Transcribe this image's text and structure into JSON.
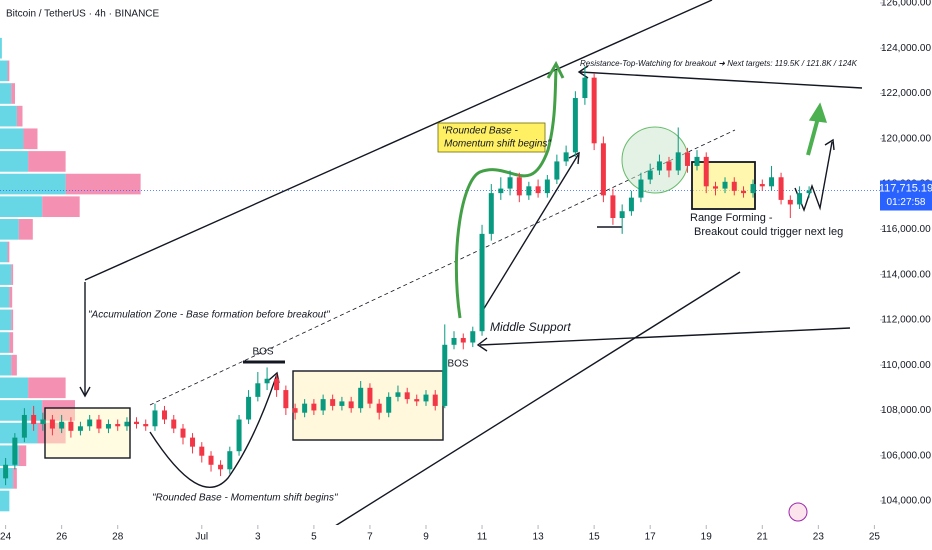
{
  "chart_data": {
    "type": "candlestick",
    "title": "Bitcoin / TetherUS · 4h · BINANCE",
    "up_color": "#089981",
    "down_color": "#f23645",
    "x": [
      0,
      0.33,
      0.67,
      1,
      1.33,
      1.67,
      2,
      2.33,
      2.67,
      3,
      3.33,
      3.67,
      4,
      4.33,
      4.67,
      5,
      5.33,
      5.67,
      6,
      6.33,
      6.67,
      7,
      7.33,
      7.67,
      8,
      8.33,
      8.67,
      9,
      9.33,
      9.67,
      10,
      10.33,
      10.67,
      11,
      11.33,
      11.67,
      12,
      12.33,
      12.67,
      13,
      13.33,
      13.67,
      14,
      14.33,
      14.67,
      15,
      15.33,
      15.67,
      16,
      16.33,
      16.67,
      17,
      17.33,
      17.67,
      18,
      18.33,
      18.67,
      19,
      19.33,
      19.67,
      20,
      20.33,
      20.67,
      21,
      21.33,
      21.67,
      22,
      22.33,
      22.67,
      23,
      23.33,
      23.67,
      24,
      24.33,
      24.67,
      25,
      25.33,
      25.67,
      26,
      26.33,
      26.67,
      27,
      27.33,
      27.67,
      28,
      28.33,
      28.67
    ],
    "open": [
      105000,
      105600,
      106800,
      107800,
      107400,
      107600,
      107200,
      107500,
      107100,
      107300,
      107600,
      107200,
      107400,
      107300,
      107500,
      107400,
      107300,
      108000,
      107600,
      107200,
      106800,
      106400,
      106000,
      105600,
      105400,
      106200,
      107600,
      108600,
      109200,
      109400,
      108900,
      108100,
      107900,
      108300,
      108000,
      108500,
      108200,
      108400,
      108100,
      109000,
      108300,
      107900,
      108600,
      108800,
      108500,
      108400,
      108700,
      108200,
      110900,
      111200,
      111000,
      111500,
      115800,
      117600,
      117800,
      118300,
      117500,
      117900,
      117600,
      118200,
      119000,
      119400,
      121800,
      122700,
      119800,
      117500,
      116500,
      116800,
      117400,
      118200,
      118600,
      119000,
      118600,
      119400,
      118800,
      119200,
      117900,
      117800,
      118100,
      117700,
      117600,
      118000,
      117900,
      118300,
      117300,
      117100,
      117600
    ],
    "high": [
      105900,
      107000,
      108100,
      108200,
      107900,
      107800,
      107800,
      107700,
      107500,
      107800,
      107800,
      107600,
      107600,
      107700,
      107700,
      107600,
      108300,
      108200,
      107800,
      107400,
      107000,
      106600,
      106200,
      105800,
      106400,
      107800,
      108900,
      109700,
      109900,
      109600,
      109100,
      108300,
      108500,
      108500,
      108700,
      108700,
      108600,
      108600,
      109300,
      109200,
      108500,
      108800,
      109100,
      109000,
      108700,
      108900,
      108900,
      111800,
      111500,
      111400,
      111700,
      116200,
      118000,
      118300,
      118600,
      118500,
      118100,
      118200,
      118400,
      119300,
      119700,
      122100,
      123200,
      122900,
      120100,
      117800,
      117100,
      117700,
      118500,
      118900,
      119300,
      119200,
      120500,
      119600,
      119500,
      119400,
      118100,
      118300,
      118300,
      117900,
      118200,
      118200,
      118800,
      118500,
      117500,
      117900,
      117900
    ],
    "low": [
      104700,
      105400,
      106600,
      107100,
      107100,
      106900,
      107000,
      106800,
      106900,
      107100,
      107000,
      107000,
      107100,
      107100,
      107200,
      107100,
      107100,
      107400,
      107000,
      106500,
      106100,
      105700,
      105300,
      105100,
      105200,
      106000,
      107400,
      108400,
      108900,
      108600,
      107800,
      107600,
      107700,
      107800,
      107800,
      108000,
      108000,
      107900,
      107900,
      108100,
      107600,
      107700,
      108400,
      108300,
      108200,
      108200,
      108000,
      108100,
      110700,
      110700,
      110800,
      111300,
      115500,
      117300,
      117500,
      117200,
      117300,
      117400,
      117400,
      118000,
      118800,
      119200,
      121500,
      119500,
      117200,
      116200,
      115800,
      116600,
      117200,
      118000,
      118400,
      118300,
      118400,
      118500,
      118600,
      117600,
      117500,
      117600,
      117500,
      117400,
      117400,
      117700,
      117700,
      117100,
      116500,
      116900,
      117400
    ],
    "close": [
      105600,
      106800,
      107800,
      107400,
      107600,
      107200,
      107500,
      107100,
      107300,
      107600,
      107200,
      107400,
      107300,
      107500,
      107400,
      107300,
      108000,
      107600,
      107200,
      106800,
      106400,
      106000,
      105600,
      105400,
      106200,
      107600,
      108600,
      109200,
      109400,
      108900,
      108100,
      107900,
      108300,
      108000,
      108500,
      108200,
      108400,
      108100,
      109000,
      108300,
      107900,
      108600,
      108800,
      108500,
      108400,
      108700,
      108200,
      110900,
      111200,
      111000,
      111500,
      115800,
      117600,
      117800,
      118300,
      117500,
      117900,
      117600,
      118200,
      119000,
      119400,
      121800,
      122700,
      119800,
      117500,
      116500,
      116800,
      117400,
      118200,
      118600,
      119000,
      118600,
      119400,
      118800,
      119200,
      117900,
      117800,
      118100,
      117700,
      117600,
      118000,
      117900,
      118300,
      117300,
      117100,
      117600,
      117715.19
    ],
    "last_close_label": "117,715.19",
    "countdown": "01:27:58",
    "xlim": [
      -0.2,
      31.2
    ],
    "xticks": [
      {
        "value": 0,
        "label": "24"
      },
      {
        "value": 2,
        "label": "26"
      },
      {
        "value": 4,
        "label": "28"
      },
      {
        "value": 7,
        "label": "Jul"
      },
      {
        "value": 9,
        "label": "3"
      },
      {
        "value": 11,
        "label": "5"
      },
      {
        "value": 13,
        "label": "7"
      },
      {
        "value": 15,
        "label": "9"
      },
      {
        "value": 17,
        "label": "11"
      },
      {
        "value": 19,
        "label": "13"
      },
      {
        "value": 21,
        "label": "15"
      },
      {
        "value": 23,
        "label": "17"
      },
      {
        "value": 25,
        "label": "19"
      },
      {
        "value": 27,
        "label": "21"
      },
      {
        "value": 29,
        "label": "23"
      },
      {
        "value": 31,
        "label": "25"
      }
    ],
    "ylim": [
      102940,
      126130
    ],
    "yticks": [
      {
        "value": 104000,
        "label": "104,000.00"
      },
      {
        "value": 106000,
        "label": "106,000.00"
      },
      {
        "value": 108000,
        "label": "108,000.00"
      },
      {
        "value": 110000,
        "label": "110,000.00"
      },
      {
        "value": 112000,
        "label": "112,000.00"
      },
      {
        "value": 114000,
        "label": "114,000.00"
      },
      {
        "value": 116000,
        "label": "116,000.00"
      },
      {
        "value": 118000,
        "label": "118,000.00"
      },
      {
        "value": 120000,
        "label": "120,000.00"
      },
      {
        "value": 122000,
        "label": "122,000.00"
      },
      {
        "value": 124000,
        "label": "124,000.00"
      },
      {
        "value": 126000,
        "label": "126,000.00"
      }
    ],
    "grid": false,
    "volume_profile": {
      "levels": [
        104000,
        105000,
        106000,
        107000,
        108000,
        109000,
        110000,
        111000,
        112000,
        113000,
        114000,
        115000,
        116000,
        117000,
        118000,
        119000,
        120000,
        121000,
        122000,
        123000,
        124000
      ],
      "step": 1000,
      "xlim": [
        0,
        160
      ],
      "series": [
        {
          "color": "#26c6da",
          "values": [
            10,
            14,
            20,
            40,
            45,
            30,
            12,
            10,
            12,
            10,
            12,
            8,
            20,
            45,
            70,
            30,
            25,
            18,
            12,
            8,
            2
          ]
        },
        {
          "color": "#f06292",
          "values": [
            0,
            4,
            8,
            30,
            35,
            40,
            6,
            4,
            2,
            3,
            2,
            2,
            15,
            40,
            80,
            40,
            15,
            6,
            4,
            2,
            0
          ]
        }
      ]
    },
    "annotations": {
      "accumulation": "\"Accumulation Zone - Base formation before breakout\"",
      "bos_left": "BOS",
      "bos_right": "BOS",
      "rounded_base_bottom": "\"Rounded Base - Momentum shift begins\"",
      "rounded_base_box": [
        "\"Rounded Base -",
        "Momentum shift begins\""
      ],
      "middle_support": "Middle Support",
      "resistance": "Resistance-Top-Watching for breakout ➜ Next targets: 119.5K / 121.8K / 124K",
      "range": [
        "Range Forming -",
        "Breakout could trigger next leg"
      ]
    }
  }
}
